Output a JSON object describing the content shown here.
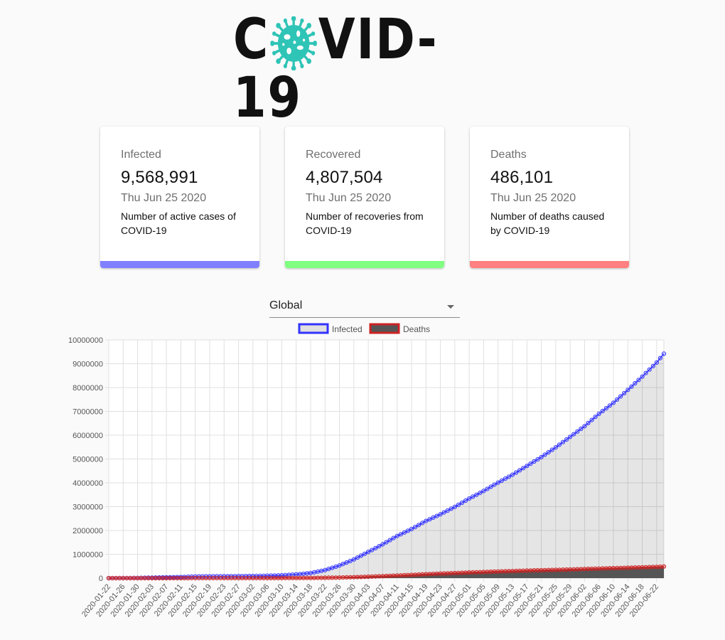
{
  "header": {
    "logo_left": "C",
    "logo_right": "VID-19",
    "logo_icon": "virus-icon"
  },
  "cards": [
    {
      "id": "infected",
      "title": "Infected",
      "value": "9,568,991",
      "date": "Thu Jun 25 2020",
      "desc": "Number of active cases of COVID-19",
      "color": "#8080ff"
    },
    {
      "id": "recovered",
      "title": "Recovered",
      "value": "4,807,504",
      "date": "Thu Jun 25 2020",
      "desc": "Number of recoveries from COVID-19",
      "color": "#80ff80"
    },
    {
      "id": "deaths",
      "title": "Deaths",
      "value": "486,101",
      "date": "Thu Jun 25 2020",
      "desc": "Number of deaths caused by COVID-19",
      "color": "#ff8080"
    }
  ],
  "country_select": {
    "selected": "Global"
  },
  "chart_data": {
    "type": "line",
    "title": "",
    "xlabel": "",
    "ylabel": "",
    "ylim": [
      0,
      10000000
    ],
    "yticks": [
      0,
      1000000,
      2000000,
      3000000,
      4000000,
      5000000,
      6000000,
      7000000,
      8000000,
      9000000,
      10000000
    ],
    "grid": true,
    "legend_position": "top",
    "x_start": "2020-01-22",
    "x_end": "2020-06-24",
    "x_tick_labels": [
      "2020-01-22",
      "2020-01-26",
      "2020-01-30",
      "2020-02-03",
      "2020-02-07",
      "2020-02-11",
      "2020-02-15",
      "2020-02-19",
      "2020-02-23",
      "2020-02-27",
      "2020-03-02",
      "2020-03-06",
      "2020-03-10",
      "2020-03-14",
      "2020-03-18",
      "2020-03-22",
      "2020-03-26",
      "2020-03-30",
      "2020-04-03",
      "2020-04-07",
      "2020-04-11",
      "2020-04-15",
      "2020-04-19",
      "2020-04-23",
      "2020-04-27",
      "2020-05-01",
      "2020-05-05",
      "2020-05-09",
      "2020-05-13",
      "2020-05-17",
      "2020-05-21",
      "2020-05-25",
      "2020-05-29",
      "2020-06-02",
      "2020-06-06",
      "2020-06-10",
      "2020-06-14",
      "2020-06-18",
      "2020-06-22"
    ],
    "series": [
      {
        "name": "Infected",
        "color": "#3333ff",
        "fill": "rgba(0,0,0,0.1)",
        "points": [
          [
            "2020-01-22",
            555
          ],
          [
            "2020-01-26",
            2100
          ],
          [
            "2020-01-30",
            9800
          ],
          [
            "2020-02-03",
            20000
          ],
          [
            "2020-02-07",
            34000
          ],
          [
            "2020-02-11",
            45000
          ],
          [
            "2020-02-15",
            69000
          ],
          [
            "2020-02-19",
            75000
          ],
          [
            "2020-02-23",
            79000
          ],
          [
            "2020-02-27",
            83000
          ],
          [
            "2020-03-02",
            90000
          ],
          [
            "2020-03-06",
            101000
          ],
          [
            "2020-03-10",
            119000
          ],
          [
            "2020-03-14",
            157000
          ],
          [
            "2020-03-18",
            215000
          ],
          [
            "2020-03-22",
            336000
          ],
          [
            "2020-03-26",
            530000
          ],
          [
            "2020-03-30",
            784000
          ],
          [
            "2020-04-03",
            1100000
          ],
          [
            "2020-04-07",
            1420000
          ],
          [
            "2020-04-11",
            1770000
          ],
          [
            "2020-04-15",
            2060000
          ],
          [
            "2020-04-19",
            2400000
          ],
          [
            "2020-04-23",
            2680000
          ],
          [
            "2020-04-27",
            2990000
          ],
          [
            "2020-05-01",
            3340000
          ],
          [
            "2020-05-05",
            3660000
          ],
          [
            "2020-05-09",
            4010000
          ],
          [
            "2020-05-13",
            4340000
          ],
          [
            "2020-05-17",
            4710000
          ],
          [
            "2020-05-21",
            5080000
          ],
          [
            "2020-05-25",
            5490000
          ],
          [
            "2020-05-29",
            5930000
          ],
          [
            "2020-06-02",
            6380000
          ],
          [
            "2020-06-06",
            6900000
          ],
          [
            "2020-06-10",
            7360000
          ],
          [
            "2020-06-14",
            7900000
          ],
          [
            "2020-06-18",
            8460000
          ],
          [
            "2020-06-22",
            9050000
          ],
          [
            "2020-06-24",
            9420000
          ]
        ]
      },
      {
        "name": "Deaths",
        "color": "#cc2222",
        "fill": "#555555",
        "points": [
          [
            "2020-01-22",
            17
          ],
          [
            "2020-01-26",
            56
          ],
          [
            "2020-01-30",
            213
          ],
          [
            "2020-02-03",
            426
          ],
          [
            "2020-02-07",
            719
          ],
          [
            "2020-02-11",
            1100
          ],
          [
            "2020-02-15",
            1660
          ],
          [
            "2020-02-19",
            2120
          ],
          [
            "2020-02-23",
            2460
          ],
          [
            "2020-02-27",
            2800
          ],
          [
            "2020-03-02",
            3080
          ],
          [
            "2020-03-06",
            3460
          ],
          [
            "2020-03-10",
            4260
          ],
          [
            "2020-03-14",
            5820
          ],
          [
            "2020-03-18",
            8950
          ],
          [
            "2020-03-22",
            14700
          ],
          [
            "2020-03-26",
            24000
          ],
          [
            "2020-03-30",
            39000
          ],
          [
            "2020-04-03",
            59000
          ],
          [
            "2020-04-07",
            82000
          ],
          [
            "2020-04-11",
            108000
          ],
          [
            "2020-04-15",
            134000
          ],
          [
            "2020-04-19",
            165000
          ],
          [
            "2020-04-23",
            190000
          ],
          [
            "2020-04-27",
            211000
          ],
          [
            "2020-05-01",
            238000
          ],
          [
            "2020-05-05",
            256000
          ],
          [
            "2020-05-09",
            279000
          ],
          [
            "2020-05-13",
            297000
          ],
          [
            "2020-05-17",
            316000
          ],
          [
            "2020-05-21",
            332000
          ],
          [
            "2020-05-25",
            346000
          ],
          [
            "2020-05-29",
            364000
          ],
          [
            "2020-06-02",
            382000
          ],
          [
            "2020-06-06",
            401000
          ],
          [
            "2020-06-10",
            418000
          ],
          [
            "2020-06-14",
            435000
          ],
          [
            "2020-06-18",
            453000
          ],
          [
            "2020-06-22",
            472000
          ],
          [
            "2020-06-24",
            486000
          ]
        ]
      }
    ]
  }
}
